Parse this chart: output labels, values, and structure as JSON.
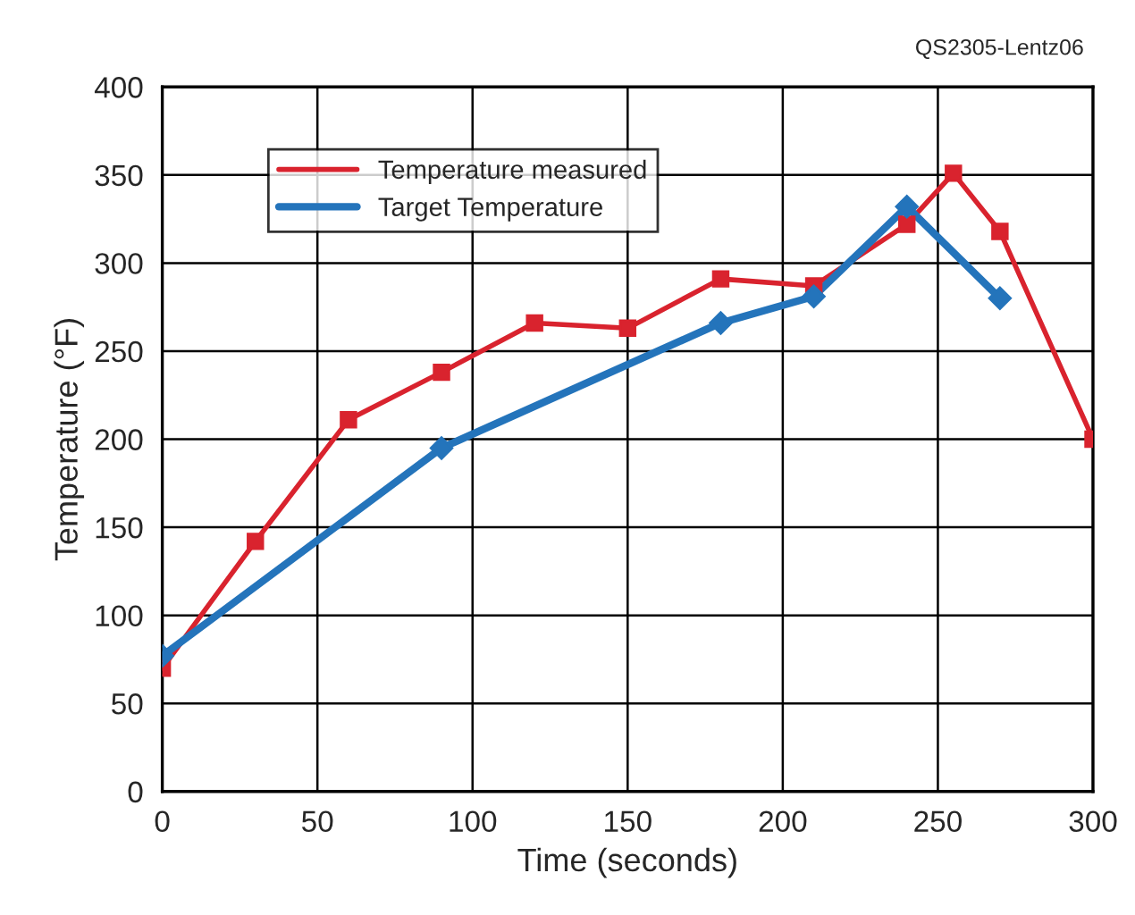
{
  "chart_data": {
    "type": "line",
    "xlabel": "Time (seconds)",
    "ylabel": "Temperature (°F)",
    "annotations": [
      "QS2305-Lentz06"
    ],
    "series": [
      {
        "name": "Temperature measured",
        "color": "#d9232e",
        "marker": "square",
        "x": [
          0,
          30,
          60,
          90,
          120,
          150,
          180,
          210,
          240,
          255,
          270,
          300
        ],
        "values": [
          70,
          142,
          211,
          238,
          266,
          263,
          291,
          287,
          322,
          351,
          318,
          200
        ]
      },
      {
        "name": "Target Temperature",
        "color": "#2474bb",
        "marker": "diamond",
        "x": [
          0,
          90,
          180,
          210,
          240,
          270
        ],
        "values": [
          77,
          195,
          266,
          281,
          332,
          280
        ]
      }
    ],
    "xlim": [
      0,
      300
    ],
    "xticks": [
      0,
      50,
      100,
      150,
      200,
      250,
      300
    ],
    "ylim": [
      0,
      400
    ],
    "yticks": [
      0,
      50,
      100,
      150,
      200,
      250,
      300,
      350,
      400
    ],
    "grid": true,
    "legend": "top left",
    "line_style": "solid"
  }
}
